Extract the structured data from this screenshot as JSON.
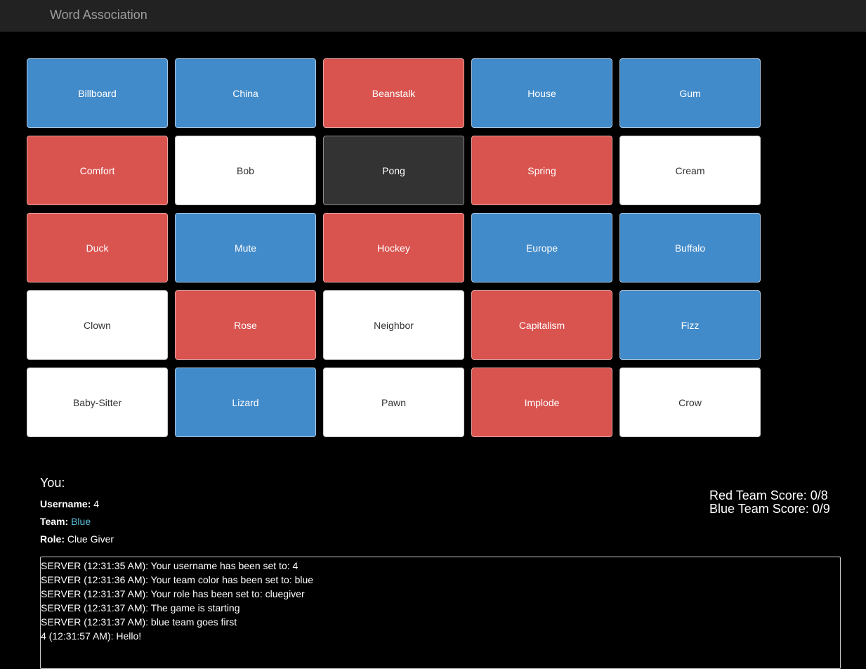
{
  "app": {
    "title": "Word Association"
  },
  "board": {
    "cards": [
      {
        "word": "Billboard",
        "color": "blue"
      },
      {
        "word": "China",
        "color": "blue"
      },
      {
        "word": "Beanstalk",
        "color": "red"
      },
      {
        "word": "House",
        "color": "blue"
      },
      {
        "word": "Gum",
        "color": "blue"
      },
      {
        "word": "Comfort",
        "color": "red"
      },
      {
        "word": "Bob",
        "color": "neutral"
      },
      {
        "word": "Pong",
        "color": "assassin"
      },
      {
        "word": "Spring",
        "color": "red"
      },
      {
        "word": "Cream",
        "color": "neutral"
      },
      {
        "word": "Duck",
        "color": "red"
      },
      {
        "word": "Mute",
        "color": "blue"
      },
      {
        "word": "Hockey",
        "color": "red"
      },
      {
        "word": "Europe",
        "color": "blue"
      },
      {
        "word": "Buffalo",
        "color": "blue"
      },
      {
        "word": "Clown",
        "color": "neutral"
      },
      {
        "word": "Rose",
        "color": "red"
      },
      {
        "word": "Neighbor",
        "color": "neutral"
      },
      {
        "word": "Capitalism",
        "color": "red"
      },
      {
        "word": "Fizz",
        "color": "blue"
      },
      {
        "word": "Baby-Sitter",
        "color": "neutral"
      },
      {
        "word": "Lizard",
        "color": "blue"
      },
      {
        "word": "Pawn",
        "color": "neutral"
      },
      {
        "word": "Implode",
        "color": "red"
      },
      {
        "word": "Crow",
        "color": "neutral"
      }
    ]
  },
  "player": {
    "heading": "You:",
    "username_label": "Username:",
    "username": "4",
    "team_label": "Team:",
    "team": "Blue",
    "role_label": "Role:",
    "role": "Clue Giver"
  },
  "scores": {
    "red": "Red Team Score: 0/8",
    "blue": "Blue Team Score: 0/9"
  },
  "chat": {
    "messages": [
      "SERVER (12:31:35 AM): Your username has been set to: 4",
      "SERVER (12:31:36 AM): Your team color has been set to: blue",
      "SERVER (12:31:37 AM): Your role has been set to: cluegiver",
      "SERVER (12:31:37 AM): The game is starting",
      "SERVER (12:31:37 AM): blue team goes first",
      "4 (12:31:57 AM): Hello!"
    ]
  },
  "colors": {
    "blue": "#428bca",
    "red": "#d9534f",
    "neutral": "#ffffff",
    "assassin": "#333333",
    "team_text": "#5bc0de"
  }
}
